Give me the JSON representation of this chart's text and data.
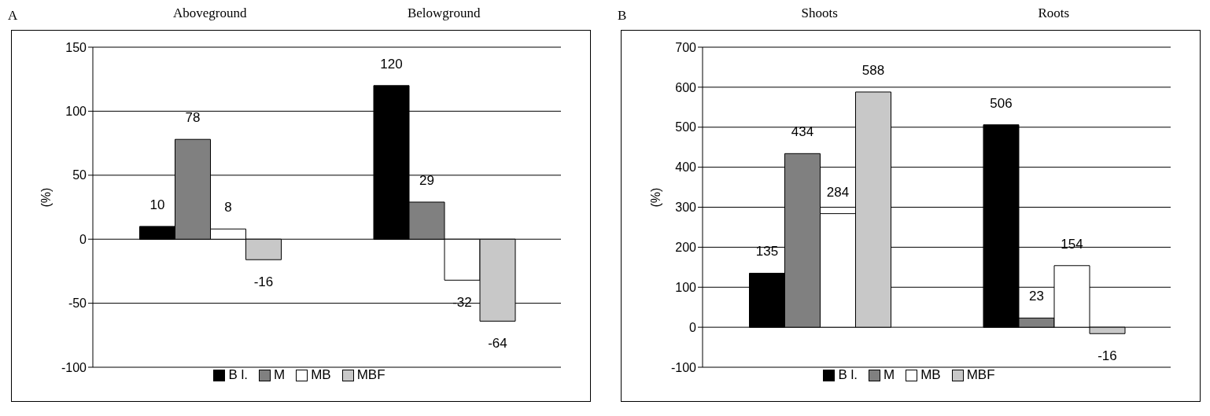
{
  "chart_data": [
    {
      "type": "bar",
      "title": "A",
      "categories": [
        "Aboveground",
        "Belowground"
      ],
      "ylabel": "(%)",
      "ylim": [
        -100,
        150
      ],
      "yticks": [
        -100,
        -50,
        0,
        50,
        100,
        150
      ],
      "grid": "y",
      "legend": "bottom",
      "data_labels": true,
      "series": [
        {
          "name": "B l.",
          "color": "#000000",
          "values": [
            10,
            120
          ]
        },
        {
          "name": "M",
          "color": "#808080",
          "values": [
            78,
            29
          ]
        },
        {
          "name": "MB",
          "color": "#ffffff",
          "values": [
            8,
            -32
          ]
        },
        {
          "name": "MBF",
          "color": "#c8c8c8",
          "values": [
            -16,
            -64
          ]
        }
      ]
    },
    {
      "type": "bar",
      "title": "B",
      "categories": [
        "Shoots",
        "Roots"
      ],
      "ylabel": "(%)",
      "ylim": [
        -100,
        700
      ],
      "yticks": [
        -100,
        0,
        100,
        200,
        300,
        400,
        500,
        600,
        700
      ],
      "grid": "y",
      "legend": "bottom",
      "data_labels": true,
      "series": [
        {
          "name": "B l.",
          "color": "#000000",
          "values": [
            135,
            506
          ]
        },
        {
          "name": "M",
          "color": "#808080",
          "values": [
            434,
            23
          ]
        },
        {
          "name": "MB",
          "color": "#ffffff",
          "values": [
            284,
            154
          ]
        },
        {
          "name": "MBF",
          "color": "#c8c8c8",
          "values": [
            588,
            -16
          ]
        }
      ]
    }
  ]
}
